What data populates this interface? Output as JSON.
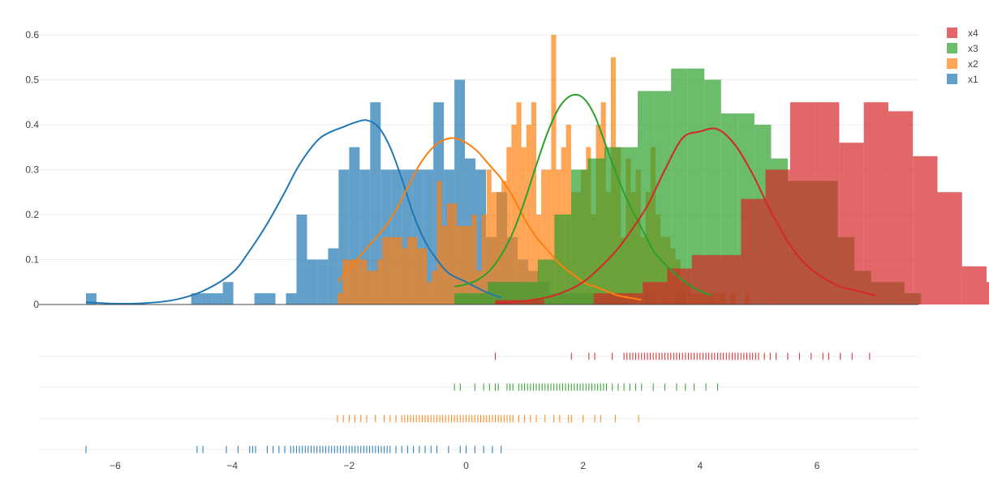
{
  "colors": {
    "x1": "#1f77b4",
    "x2": "#ff7f0e",
    "x3": "#2ca02c",
    "x4": "#d62728",
    "grid": "#eeeeee",
    "axis": "#444444",
    "text": "#444444"
  },
  "chart_data": {
    "type": "histogram-distplot",
    "title": "",
    "xlabel": "",
    "ylabel": "",
    "xlim": [
      -7.3,
      7.8
    ],
    "ylim": [
      0,
      0.63
    ],
    "x_ticks": [
      -6,
      -4,
      -2,
      0,
      2,
      4,
      6
    ],
    "x_tick_labels": [
      "−6",
      "−4",
      "−2",
      "0",
      "2",
      "4",
      "6"
    ],
    "y_ticks": [
      0,
      0.1,
      0.2,
      0.3,
      0.4,
      0.5,
      0.6
    ],
    "y_tick_labels": [
      "0",
      "0.1",
      "0.2",
      "0.3",
      "0.4",
      "0.5",
      "0.6"
    ],
    "grid": true,
    "legend_position": "top-right",
    "legend": [
      "x4",
      "x3",
      "x2",
      "x1"
    ],
    "series": [
      {
        "name": "x1",
        "color_key": "x1",
        "hist": {
          "start": -6.5,
          "width": 0.18,
          "values": [
            0.025,
            0,
            0,
            0,
            0,
            0,
            0,
            0,
            0,
            0,
            0.025,
            0.025,
            0.025,
            0.05,
            0,
            0,
            0.025,
            0.025,
            0,
            0.025,
            0.2,
            0.1,
            0.1,
            0.125,
            0.3,
            0.35,
            0.3,
            0.45,
            0.3,
            0.3,
            0.3,
            0.3,
            0.3,
            0.45,
            0.3,
            0.5,
            0.325,
            0.3,
            0.15,
            0.25,
            0.15,
            0.1,
            0.075,
            0.05,
            0.025,
            0.025,
            0.025,
            0.025,
            0.025,
            0.025,
            0.025,
            0.025,
            0,
            0.025,
            0,
            0,
            0.025
          ]
        },
        "kde": {
          "x": [
            -6.5,
            -6.0,
            -5.5,
            -5.0,
            -4.5,
            -4.0,
            -3.7,
            -3.4,
            -3.1,
            -2.9,
            -2.7,
            -2.5,
            -2.3,
            -2.1,
            -1.9,
            -1.7,
            -1.5,
            -1.3,
            -1.1,
            -0.9,
            -0.7,
            -0.5,
            -0.3,
            0,
            0.3,
            0.6
          ],
          "y": [
            0.005,
            0.002,
            0.003,
            0.01,
            0.03,
            0.07,
            0.12,
            0.18,
            0.25,
            0.3,
            0.34,
            0.37,
            0.385,
            0.395,
            0.405,
            0.41,
            0.395,
            0.35,
            0.28,
            0.2,
            0.14,
            0.1,
            0.07,
            0.05,
            0.03,
            0.015
          ]
        },
        "rug": [
          -6.5,
          -4.6,
          -4.5,
          -4.1,
          -3.9,
          -3.7,
          -3.65,
          -3.6,
          -3.4,
          -3.3,
          -3.2,
          -3.1,
          -3.0,
          -2.95,
          -2.9,
          -2.85,
          -2.8,
          -2.75,
          -2.7,
          -2.65,
          -2.6,
          -2.55,
          -2.5,
          -2.45,
          -2.4,
          -2.35,
          -2.3,
          -2.25,
          -2.2,
          -2.15,
          -2.1,
          -2.05,
          -2.0,
          -1.95,
          -1.9,
          -1.85,
          -1.8,
          -1.75,
          -1.7,
          -1.65,
          -1.6,
          -1.55,
          -1.5,
          -1.45,
          -1.4,
          -1.35,
          -1.3,
          -1.2,
          -1.1,
          -1.0,
          -0.9,
          -0.8,
          -0.7,
          -0.6,
          -0.5,
          -0.3,
          -0.1,
          0.0,
          0.15,
          0.3,
          0.45,
          0.6
        ]
      },
      {
        "name": "x2",
        "color_key": "x2",
        "hist": {
          "start": -2.2,
          "width": 0.085,
          "values": [
            0.025,
            0.1,
            0.1,
            0.1,
            0.1,
            0.1,
            0.075,
            0.075,
            0.1,
            0.15,
            0.15,
            0.15,
            0.15,
            0.125,
            0.15,
            0.15,
            0.125,
            0.125,
            0.05,
            0.075,
            0.275,
            0.175,
            0.225,
            0.225,
            0.175,
            0.175,
            0.175,
            0.2,
            0.075,
            0.2,
            0.3,
            0.25,
            0.25,
            0.275,
            0.35,
            0.4,
            0.45,
            0.35,
            0.4,
            0.45,
            0.2,
            0.3,
            0.3,
            0.6,
            0.3,
            0.35,
            0.4,
            0.25,
            0.25,
            0.3,
            0.35,
            0.2,
            0.4,
            0.45,
            0.25,
            0.55,
            0.35,
            0.15,
            0.325,
            0.25,
            0.3,
            0.15,
            0.25,
            0.35,
            0.2,
            0.15,
            0.15,
            0.125,
            0.1,
            0.05,
            0.05,
            0.025,
            0.025,
            0.025,
            0.025,
            0.025,
            0.025,
            0.025,
            0,
            0.025,
            0,
            0,
            0.025
          ]
        },
        "kde": {
          "x": [
            -2.2,
            -2.0,
            -1.8,
            -1.6,
            -1.4,
            -1.2,
            -1.0,
            -0.8,
            -0.6,
            -0.4,
            -0.2,
            0.0,
            0.2,
            0.4,
            0.6,
            0.8,
            1.0,
            1.2,
            1.4,
            1.6,
            1.8,
            2.0,
            2.2,
            2.4,
            2.6,
            2.8,
            3.0
          ],
          "y": [
            0.05,
            0.08,
            0.11,
            0.14,
            0.17,
            0.21,
            0.26,
            0.31,
            0.345,
            0.365,
            0.37,
            0.36,
            0.34,
            0.31,
            0.28,
            0.24,
            0.19,
            0.15,
            0.12,
            0.09,
            0.07,
            0.05,
            0.04,
            0.03,
            0.02,
            0.015,
            0.01
          ]
        },
        "rug": [
          -2.2,
          -2.1,
          -2.0,
          -1.9,
          -1.8,
          -1.7,
          -1.55,
          -1.4,
          -1.3,
          -1.2,
          -1.1,
          -1.05,
          -1.0,
          -0.95,
          -0.9,
          -0.85,
          -0.8,
          -0.75,
          -0.7,
          -0.65,
          -0.6,
          -0.55,
          -0.5,
          -0.45,
          -0.4,
          -0.35,
          -0.3,
          -0.25,
          -0.2,
          -0.15,
          -0.1,
          -0.05,
          0.0,
          0.05,
          0.1,
          0.15,
          0.2,
          0.25,
          0.3,
          0.35,
          0.4,
          0.45,
          0.5,
          0.55,
          0.6,
          0.65,
          0.7,
          0.75,
          0.8,
          0.9,
          1.0,
          1.1,
          1.2,
          1.35,
          1.5,
          1.6,
          1.75,
          1.8,
          2.0,
          2.2,
          2.3,
          2.55,
          2.95
        ]
      },
      {
        "name": "x3",
        "color_key": "x3",
        "hist": {
          "start": -0.2,
          "width": 0.285,
          "values": [
            0.025,
            0.025,
            0.05,
            0.05,
            0.05,
            0.1,
            0.2,
            0.3,
            0.325,
            0.35,
            0.35,
            0.475,
            0.475,
            0.525,
            0.525,
            0.5,
            0.425,
            0.425,
            0.4,
            0.325,
            0.275,
            0.275,
            0.275,
            0.15,
            0.075,
            0.05,
            0.05,
            0.025
          ]
        },
        "kde": {
          "x": [
            -0.2,
            0.0,
            0.2,
            0.4,
            0.6,
            0.8,
            1.0,
            1.2,
            1.4,
            1.6,
            1.8,
            2.0,
            2.2,
            2.4,
            2.6,
            2.8,
            3.0,
            3.2,
            3.4,
            3.6,
            3.8,
            4.0,
            4.2
          ],
          "y": [
            0.04,
            0.045,
            0.055,
            0.075,
            0.11,
            0.16,
            0.23,
            0.31,
            0.385,
            0.44,
            0.465,
            0.46,
            0.42,
            0.35,
            0.28,
            0.22,
            0.17,
            0.12,
            0.09,
            0.065,
            0.045,
            0.03,
            0.02
          ]
        },
        "rug": [
          -0.2,
          -0.1,
          0.15,
          0.3,
          0.4,
          0.5,
          0.55,
          0.7,
          0.75,
          0.8,
          0.9,
          0.95,
          1.0,
          1.05,
          1.1,
          1.15,
          1.2,
          1.25,
          1.3,
          1.35,
          1.4,
          1.45,
          1.5,
          1.55,
          1.6,
          1.65,
          1.7,
          1.75,
          1.8,
          1.85,
          1.9,
          1.95,
          2.0,
          2.05,
          2.1,
          2.15,
          2.2,
          2.25,
          2.3,
          2.35,
          2.4,
          2.5,
          2.6,
          2.7,
          2.8,
          2.9,
          3.0,
          3.2,
          3.4,
          3.6,
          3.75,
          3.9,
          4.1,
          4.3
        ]
      },
      {
        "name": "x4",
        "color_key": "x4",
        "hist": {
          "start": 0.5,
          "width": 0.42,
          "values": [
            0.01,
            0.01,
            0,
            0,
            0.025,
            0.025,
            0.05,
            0.08,
            0.11,
            0.11,
            0.235,
            0.3,
            0.45,
            0.45,
            0.36,
            0.45,
            0.43,
            0.33,
            0.25,
            0.085,
            0.05,
            0.045,
            0.03,
            0.02,
            0.01,
            0.01
          ]
        },
        "kde": {
          "x": [
            0.5,
            1.0,
            1.5,
            2.0,
            2.5,
            2.8,
            3.1,
            3.4,
            3.7,
            4.0,
            4.3,
            4.6,
            4.9,
            5.2,
            5.5,
            5.8,
            6.1,
            6.4,
            6.7,
            7.0
          ],
          "y": [
            0.003,
            0.008,
            0.02,
            0.05,
            0.11,
            0.16,
            0.22,
            0.3,
            0.37,
            0.385,
            0.39,
            0.355,
            0.29,
            0.21,
            0.14,
            0.09,
            0.06,
            0.04,
            0.03,
            0.02
          ]
        },
        "rug": [
          0.5,
          1.8,
          2.1,
          2.2,
          2.5,
          2.7,
          2.75,
          2.8,
          2.85,
          2.9,
          2.95,
          3.0,
          3.05,
          3.1,
          3.15,
          3.2,
          3.25,
          3.3,
          3.35,
          3.4,
          3.45,
          3.5,
          3.55,
          3.6,
          3.65,
          3.7,
          3.75,
          3.8,
          3.85,
          3.9,
          3.95,
          4.0,
          4.05,
          4.1,
          4.15,
          4.2,
          4.25,
          4.3,
          4.35,
          4.4,
          4.45,
          4.5,
          4.55,
          4.6,
          4.65,
          4.7,
          4.75,
          4.8,
          4.85,
          4.9,
          4.95,
          5.0,
          5.1,
          5.2,
          5.3,
          5.5,
          5.7,
          5.9,
          6.1,
          6.2,
          6.4,
          6.6,
          6.9
        ]
      }
    ]
  }
}
